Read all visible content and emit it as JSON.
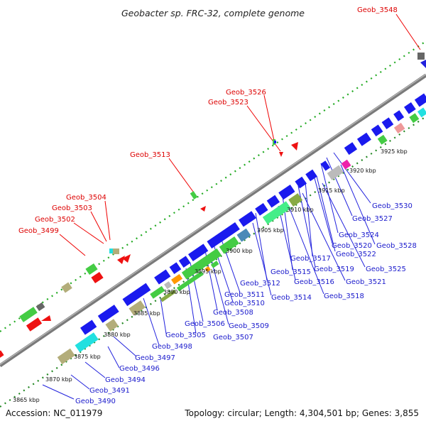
{
  "title": "Geobacter sp. FRC-32, complete genome",
  "footer": {
    "accession": "Accession: NC_011979",
    "topology": "Topology: circular; Length: 4,304,501 bp; Genes: 3,855"
  },
  "kbp_labels": [
    "3865 kbp",
    "3870 kbp",
    "3875 kbp",
    "3880 kbp",
    "3885 kbp",
    "3890 kbp",
    "3895 kbp",
    "3900 kbp",
    "3905 kbp",
    "3910 kbp",
    "3915 kbp",
    "3920 kbp",
    "3925 kbp"
  ],
  "red_labels": [
    "Geob_3548",
    "Geob_3526",
    "Geob_3523",
    "Geob_3513",
    "Geob_3504",
    "Geob_3503",
    "Geob_3502",
    "Geob_3499"
  ],
  "blue_labels": [
    "Geob_3530",
    "Geob_3527",
    "Geob_3528",
    "Geob_3524",
    "Geob_3520",
    "Geob_3522",
    "Geob_3517",
    "Geob_3525",
    "Geob_3519",
    "Geob_3515",
    "Geob_3521",
    "Geob_3516",
    "Geob_3512",
    "Geob_3518",
    "Geob_3514",
    "Geob_3511",
    "Geob_3510",
    "Geob_3508",
    "Geob_3509",
    "Geob_3506",
    "Geob_3507",
    "Geob_3505",
    "Geob_3498",
    "Geob_3497",
    "Geob_3496",
    "Geob_3494",
    "Geob_3491",
    "Geob_3490"
  ],
  "colors": {
    "leader_red": "#ee0000",
    "leader_blue": "#2222dd",
    "backbone": "#777777",
    "gene_blue": "#1a1aee",
    "gene_green": "#44cc44",
    "gene_khaki": "#b3ad7a",
    "gene_cyan": "#22e0e0",
    "gene_red": "#ee1111",
    "gene_gray": "#bbbbbb",
    "gene_pink": "#ee9999",
    "gene_magenta": "#ee22aa",
    "gene_orange": "#ff9900",
    "gene_steel": "#4a8ab8",
    "gene_olive": "#88aa44",
    "tick_green": "#228822"
  }
}
